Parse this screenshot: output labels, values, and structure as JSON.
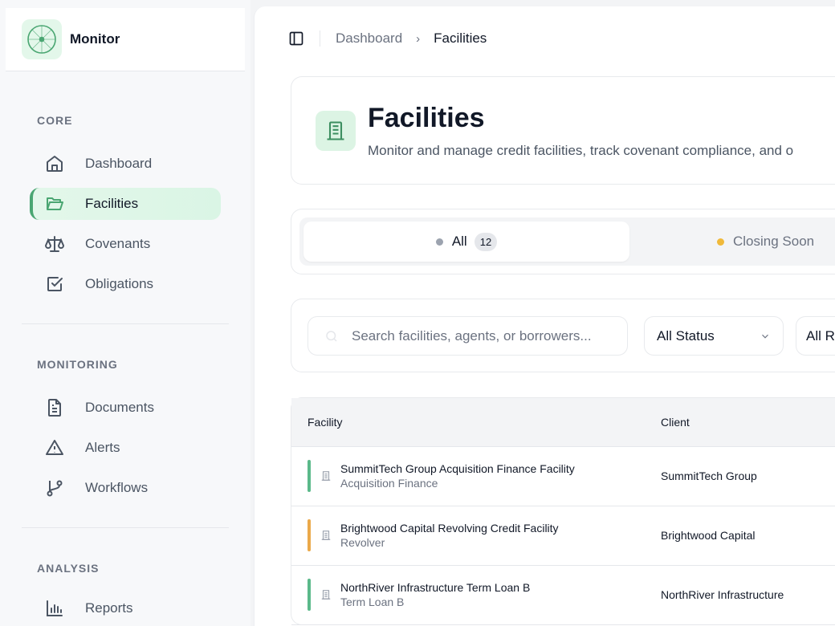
{
  "app": {
    "name": "Monitor"
  },
  "sidebar": {
    "sections": [
      {
        "label": "CORE",
        "items": [
          {
            "label": "Dashboard",
            "icon": "home-icon"
          },
          {
            "label": "Facilities",
            "icon": "folder-open-icon",
            "active": true
          },
          {
            "label": "Covenants",
            "icon": "scale-icon"
          },
          {
            "label": "Obligations",
            "icon": "checkbox-icon"
          }
        ]
      },
      {
        "label": "MONITORING",
        "items": [
          {
            "label": "Documents",
            "icon": "document-icon"
          },
          {
            "label": "Alerts",
            "icon": "alert-triangle-icon"
          },
          {
            "label": "Workflows",
            "icon": "git-branch-icon"
          }
        ]
      },
      {
        "label": "ANALYSIS",
        "items": [
          {
            "label": "Reports",
            "icon": "bar-chart-icon"
          }
        ]
      }
    ]
  },
  "breadcrumb": [
    "Dashboard",
    "Facilities"
  ],
  "header": {
    "title": "Facilities",
    "subtitle": "Monitor and manage credit facilities, track covenant compliance, and o"
  },
  "tabs": [
    {
      "label": "All",
      "count": "12",
      "dot": "#9ca3af"
    },
    {
      "label": "Closing Soon",
      "dot": "#f0b93a"
    }
  ],
  "filters": {
    "search_placeholder": "Search facilities, agents, or borrowers...",
    "status": "All Status",
    "second": "All R"
  },
  "table": {
    "columns": [
      "Facility",
      "Client"
    ],
    "rows": [
      {
        "name": "SummitTech Group Acquisition Finance Facility",
        "type": "Acquisition Finance",
        "client": "SummitTech Group",
        "color": "#5bb98a"
      },
      {
        "name": "Brightwood Capital Revolving Credit Facility",
        "type": "Revolver",
        "client": "Brightwood Capital",
        "color": "#eba94a"
      },
      {
        "name": "NorthRiver Infrastructure Term Loan B",
        "type": "Term Loan B",
        "client": "NorthRiver Infrastructure",
        "color": "#5bb98a"
      }
    ]
  },
  "colors": {
    "accent": "#4aa672",
    "accent_bg": "#e3f7ea"
  }
}
